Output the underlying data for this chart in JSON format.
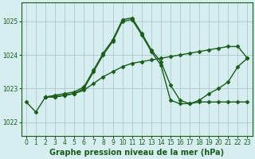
{
  "title": "Graphe pression niveau de la mer (hPa)",
  "bg_color": "#d6eef0",
  "grid_color": "#aacccc",
  "line_color": "#1a5c1a",
  "xlim": [
    -0.5,
    23.5
  ],
  "ylim": [
    1021.6,
    1025.55
  ],
  "yticks": [
    1022,
    1023,
    1024,
    1025
  ],
  "xticks": [
    0,
    1,
    2,
    3,
    4,
    5,
    6,
    7,
    8,
    9,
    10,
    11,
    12,
    13,
    14,
    15,
    16,
    17,
    18,
    19,
    20,
    21,
    22,
    23
  ],
  "series": [
    {
      "x": [
        0,
        1,
        2,
        3,
        4,
        5,
        6,
        7,
        8,
        9,
        10,
        11,
        12,
        13,
        14,
        15,
        16,
        17,
        18,
        19,
        20,
        21,
        22,
        23
      ],
      "y": [
        1022.6,
        1022.3,
        1022.75,
        1022.75,
        1022.8,
        1022.85,
        1023.0,
        1023.5,
        1024.0,
        1024.4,
        1025.0,
        1025.05,
        1024.6,
        1024.1,
        1023.7,
        1022.65,
        1022.55,
        1022.55,
        1022.6,
        1022.6,
        1022.6,
        1022.6,
        1022.6,
        1022.6
      ]
    },
    {
      "x": [
        2,
        3,
        4,
        5,
        6,
        7,
        8,
        9,
        10,
        11,
        12,
        13,
        14,
        15,
        16,
        17,
        18,
        19,
        20,
        21,
        22,
        23
      ],
      "y": [
        1022.75,
        1022.75,
        1022.8,
        1022.85,
        1022.95,
        1023.15,
        1023.35,
        1023.5,
        1023.65,
        1023.75,
        1023.8,
        1023.85,
        1023.9,
        1023.95,
        1024.0,
        1024.05,
        1024.1,
        1024.15,
        1024.2,
        1024.25,
        1024.25,
        1023.9
      ]
    },
    {
      "x": [
        2,
        3,
        4,
        5,
        6,
        7,
        8,
        9,
        10,
        11,
        12,
        13,
        14,
        15,
        16,
        17,
        18,
        19,
        20,
        21,
        22,
        23
      ],
      "y": [
        1022.75,
        1022.8,
        1022.85,
        1022.9,
        1023.05,
        1023.55,
        1024.05,
        1024.45,
        1025.05,
        1025.1,
        1024.65,
        1024.15,
        1023.8,
        1023.1,
        1022.65,
        1022.55,
        1022.65,
        1022.85,
        1023.0,
        1023.2,
        1023.65,
        1023.9
      ]
    }
  ],
  "marker": "D",
  "markersize": 2.5,
  "linewidth": 1.0,
  "title_fontsize": 7,
  "tick_fontsize": 5.5
}
